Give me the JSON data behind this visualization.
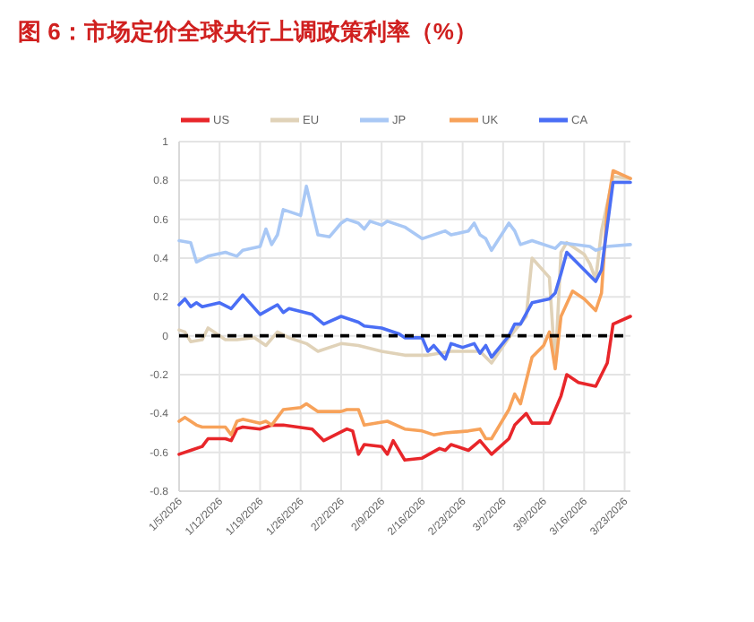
{
  "chart_data": {
    "type": "line",
    "title": "图 6：市场定价全球央行上调政策利率（%）",
    "xlim": [
      "2026-01-05",
      "2026-03-24"
    ],
    "xticks": [
      {
        "value": "2026-01-05",
        "label": "1/5/2026"
      },
      {
        "value": "2026-01-12",
        "label": "1/12/2026"
      },
      {
        "value": "2026-01-19",
        "label": "1/19/2026"
      },
      {
        "value": "2026-01-26",
        "label": "1/26/2026"
      },
      {
        "value": "2026-02-02",
        "label": "2/2/2026"
      },
      {
        "value": "2026-02-09",
        "label": "2/9/2026"
      },
      {
        "value": "2026-02-16",
        "label": "2/16/2026"
      },
      {
        "value": "2026-02-23",
        "label": "2/23/2026"
      },
      {
        "value": "2026-03-02",
        "label": "3/2/2026"
      },
      {
        "value": "2026-03-09",
        "label": "3/9/2026"
      },
      {
        "value": "2026-03-16",
        "label": "3/16/2026"
      },
      {
        "value": "2026-03-23",
        "label": "3/23/2026"
      }
    ],
    "ylim": [
      -0.8,
      1
    ],
    "yticks": [
      -0.8,
      -0.6,
      -0.4,
      -0.2,
      0,
      0.2,
      0.4,
      0.6,
      0.8,
      1
    ],
    "grid": true,
    "legend": "top",
    "marker": "none",
    "line_style": "solid",
    "ref_lines": [
      {
        "axis": "y",
        "value": 0,
        "color": "#000000",
        "line_style": "dashed"
      }
    ],
    "series": [
      {
        "name": "US",
        "color": "#e8262a",
        "x": [
          "2026-01-05",
          "2026-01-07",
          "2026-01-09",
          "2026-01-10",
          "2026-01-13",
          "2026-01-14",
          "2026-01-15",
          "2026-01-16",
          "2026-01-19",
          "2026-01-21",
          "2026-01-23",
          "2026-01-28",
          "2026-01-30",
          "2026-02-03",
          "2026-02-04",
          "2026-02-05",
          "2026-02-06",
          "2026-02-09",
          "2026-02-10",
          "2026-02-11",
          "2026-02-13",
          "2026-02-16",
          "2026-02-19",
          "2026-02-20",
          "2026-02-21",
          "2026-02-24",
          "2026-02-26",
          "2026-02-28",
          "2026-03-03",
          "2026-03-04",
          "2026-03-06",
          "2026-03-07",
          "2026-03-10",
          "2026-03-12",
          "2026-03-13",
          "2026-03-15",
          "2026-03-18",
          "2026-03-20",
          "2026-03-21",
          "2026-03-24"
        ],
        "values": [
          -0.61,
          -0.59,
          -0.57,
          -0.53,
          -0.53,
          -0.54,
          -0.48,
          -0.47,
          -0.48,
          -0.46,
          -0.46,
          -0.48,
          -0.54,
          -0.48,
          -0.49,
          -0.61,
          -0.56,
          -0.57,
          -0.61,
          -0.54,
          -0.64,
          -0.63,
          -0.58,
          -0.59,
          -0.56,
          -0.59,
          -0.54,
          -0.61,
          -0.53,
          -0.46,
          -0.4,
          -0.45,
          -0.45,
          -0.31,
          -0.2,
          -0.24,
          -0.26,
          -0.14,
          0.06,
          0.1
        ]
      },
      {
        "name": "EU",
        "color": "#e0d2b8",
        "x": [
          "2026-01-05",
          "2026-01-06",
          "2026-01-07",
          "2026-01-09",
          "2026-01-10",
          "2026-01-11",
          "2026-01-13",
          "2026-01-15",
          "2026-01-18",
          "2026-01-20",
          "2026-01-22",
          "2026-01-24",
          "2026-01-27",
          "2026-01-29",
          "2026-02-02",
          "2026-02-05",
          "2026-02-09",
          "2026-02-13",
          "2026-02-17",
          "2026-02-21",
          "2026-02-26",
          "2026-02-28",
          "2026-03-03",
          "2026-03-06",
          "2026-03-07",
          "2026-03-10",
          "2026-03-11",
          "2026-03-12",
          "2026-03-13",
          "2026-03-16",
          "2026-03-17",
          "2026-03-18",
          "2026-03-19",
          "2026-03-21",
          "2026-03-24"
        ],
        "values": [
          0.03,
          0.02,
          -0.03,
          -0.02,
          0.04,
          0.02,
          -0.02,
          -0.02,
          -0.01,
          -0.05,
          0.02,
          -0.01,
          -0.04,
          -0.08,
          -0.04,
          -0.05,
          -0.08,
          -0.1,
          -0.1,
          -0.08,
          -0.08,
          -0.14,
          -0.01,
          0.1,
          0.4,
          0.3,
          -0.16,
          0.43,
          0.48,
          0.42,
          0.37,
          0.29,
          0.54,
          0.82,
          0.81
        ]
      },
      {
        "name": "JP",
        "color": "#a9c8f5",
        "x": [
          "2026-01-05",
          "2026-01-07",
          "2026-01-08",
          "2026-01-10",
          "2026-01-13",
          "2026-01-15",
          "2026-01-16",
          "2026-01-19",
          "2026-01-20",
          "2026-01-21",
          "2026-01-22",
          "2026-01-23",
          "2026-01-26",
          "2026-01-27",
          "2026-01-29",
          "2026-01-31",
          "2026-02-02",
          "2026-02-03",
          "2026-02-05",
          "2026-02-06",
          "2026-02-07",
          "2026-02-09",
          "2026-02-10",
          "2026-02-13",
          "2026-02-16",
          "2026-02-20",
          "2026-02-21",
          "2026-02-24",
          "2026-02-25",
          "2026-02-26",
          "2026-02-27",
          "2026-02-28",
          "2026-03-03",
          "2026-03-04",
          "2026-03-05",
          "2026-03-07",
          "2026-03-11",
          "2026-03-12",
          "2026-03-17",
          "2026-03-18",
          "2026-03-20",
          "2026-03-24"
        ],
        "values": [
          0.49,
          0.48,
          0.38,
          0.41,
          0.43,
          0.41,
          0.44,
          0.46,
          0.55,
          0.47,
          0.52,
          0.65,
          0.62,
          0.77,
          0.52,
          0.51,
          0.58,
          0.6,
          0.58,
          0.55,
          0.59,
          0.57,
          0.59,
          0.56,
          0.5,
          0.54,
          0.52,
          0.54,
          0.58,
          0.52,
          0.5,
          0.44,
          0.58,
          0.54,
          0.47,
          0.49,
          0.45,
          0.48,
          0.46,
          0.44,
          0.46,
          0.47
        ]
      },
      {
        "name": "UK",
        "color": "#f7a25a",
        "x": [
          "2026-01-05",
          "2026-01-06",
          "2026-01-08",
          "2026-01-09",
          "2026-01-13",
          "2026-01-14",
          "2026-01-15",
          "2026-01-16",
          "2026-01-19",
          "2026-01-20",
          "2026-01-21",
          "2026-01-23",
          "2026-01-26",
          "2026-01-27",
          "2026-01-29",
          "2026-02-02",
          "2026-02-03",
          "2026-02-05",
          "2026-02-06",
          "2026-02-10",
          "2026-02-13",
          "2026-02-16",
          "2026-02-18",
          "2026-02-20",
          "2026-02-24",
          "2026-02-26",
          "2026-02-27",
          "2026-02-28",
          "2026-03-03",
          "2026-03-04",
          "2026-03-05",
          "2026-03-07",
          "2026-03-09",
          "2026-03-10",
          "2026-03-11",
          "2026-03-12",
          "2026-03-14",
          "2026-03-16",
          "2026-03-18",
          "2026-03-19",
          "2026-03-20",
          "2026-03-21",
          "2026-03-24"
        ],
        "values": [
          -0.44,
          -0.42,
          -0.46,
          -0.47,
          -0.47,
          -0.51,
          -0.44,
          -0.43,
          -0.45,
          -0.44,
          -0.46,
          -0.38,
          -0.37,
          -0.35,
          -0.39,
          -0.39,
          -0.38,
          -0.38,
          -0.46,
          -0.44,
          -0.48,
          -0.49,
          -0.51,
          -0.5,
          -0.49,
          -0.48,
          -0.53,
          -0.53,
          -0.38,
          -0.3,
          -0.35,
          -0.11,
          -0.05,
          0.02,
          -0.17,
          0.1,
          0.23,
          0.19,
          0.13,
          0.22,
          0.66,
          0.85,
          0.81
        ]
      },
      {
        "name": "CA",
        "color": "#4a6ef5",
        "x": [
          "2026-01-05",
          "2026-01-06",
          "2026-01-07",
          "2026-01-08",
          "2026-01-09",
          "2026-01-12",
          "2026-01-14",
          "2026-01-16",
          "2026-01-19",
          "2026-01-22",
          "2026-01-23",
          "2026-01-24",
          "2026-01-28",
          "2026-01-30",
          "2026-02-02",
          "2026-02-05",
          "2026-02-06",
          "2026-02-09",
          "2026-02-12",
          "2026-02-13",
          "2026-02-16",
          "2026-02-17",
          "2026-02-18",
          "2026-02-20",
          "2026-02-21",
          "2026-02-23",
          "2026-02-25",
          "2026-02-26",
          "2026-02-27",
          "2026-02-28",
          "2026-03-03",
          "2026-03-04",
          "2026-03-05",
          "2026-03-07",
          "2026-03-10",
          "2026-03-11",
          "2026-03-12",
          "2026-03-13",
          "2026-03-18",
          "2026-03-19",
          "2026-03-21",
          "2026-03-24"
        ],
        "values": [
          0.16,
          0.19,
          0.15,
          0.17,
          0.15,
          0.17,
          0.14,
          0.21,
          0.11,
          0.16,
          0.12,
          0.14,
          0.11,
          0.06,
          0.1,
          0.07,
          0.05,
          0.04,
          0.01,
          -0.01,
          -0.01,
          -0.08,
          -0.05,
          -0.12,
          -0.04,
          -0.06,
          -0.04,
          -0.09,
          -0.05,
          -0.11,
          0,
          0.06,
          0.06,
          0.17,
          0.19,
          0.22,
          0.32,
          0.43,
          0.28,
          0.34,
          0.79,
          0.79
        ]
      }
    ]
  }
}
